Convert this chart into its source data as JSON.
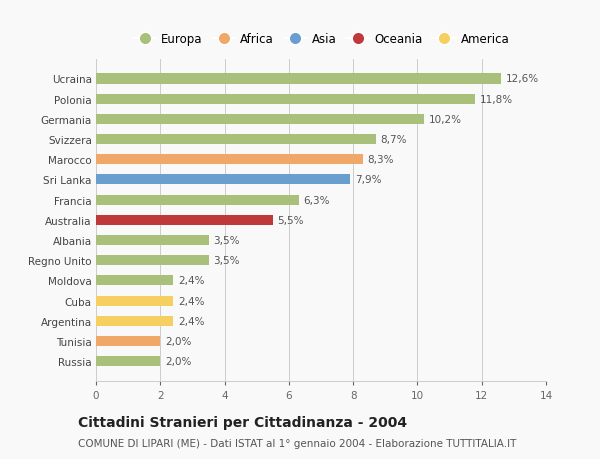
{
  "countries": [
    "Russia",
    "Tunisia",
    "Argentina",
    "Cuba",
    "Moldova",
    "Regno Unito",
    "Albania",
    "Australia",
    "Francia",
    "Sri Lanka",
    "Marocco",
    "Svizzera",
    "Germania",
    "Polonia",
    "Ucraina"
  ],
  "values": [
    2.0,
    2.0,
    2.4,
    2.4,
    2.4,
    3.5,
    3.5,
    5.5,
    6.3,
    7.9,
    8.3,
    8.7,
    10.2,
    11.8,
    12.6
  ],
  "labels": [
    "2,0%",
    "2,0%",
    "2,4%",
    "2,4%",
    "2,4%",
    "3,5%",
    "3,5%",
    "5,5%",
    "6,3%",
    "7,9%",
    "8,3%",
    "8,7%",
    "10,2%",
    "11,8%",
    "12,6%"
  ],
  "continents": [
    "Europa",
    "Africa",
    "America",
    "America",
    "Europa",
    "Europa",
    "Europa",
    "Oceania",
    "Europa",
    "Asia",
    "Africa",
    "Europa",
    "Europa",
    "Europa",
    "Europa"
  ],
  "continent_colors": {
    "Europa": "#a8c07a",
    "Africa": "#f0a868",
    "Asia": "#6a9ecf",
    "Oceania": "#c0393a",
    "America": "#f5d060"
  },
  "legend_order": [
    "Europa",
    "Africa",
    "Asia",
    "Oceania",
    "America"
  ],
  "xlim": [
    0,
    14
  ],
  "xticks": [
    0,
    2,
    4,
    6,
    8,
    10,
    12,
    14
  ],
  "title": "Cittadini Stranieri per Cittadinanza - 2004",
  "subtitle": "COMUNE DI LIPARI (ME) - Dati ISTAT al 1° gennaio 2004 - Elaborazione TUTTITALIA.IT",
  "background_color": "#f9f9f9",
  "grid_color": "#cccccc",
  "bar_height": 0.5,
  "label_fontsize": 7.5,
  "ytick_fontsize": 7.5,
  "xtick_fontsize": 7.5,
  "title_fontsize": 10,
  "subtitle_fontsize": 7.5,
  "legend_fontsize": 8.5
}
